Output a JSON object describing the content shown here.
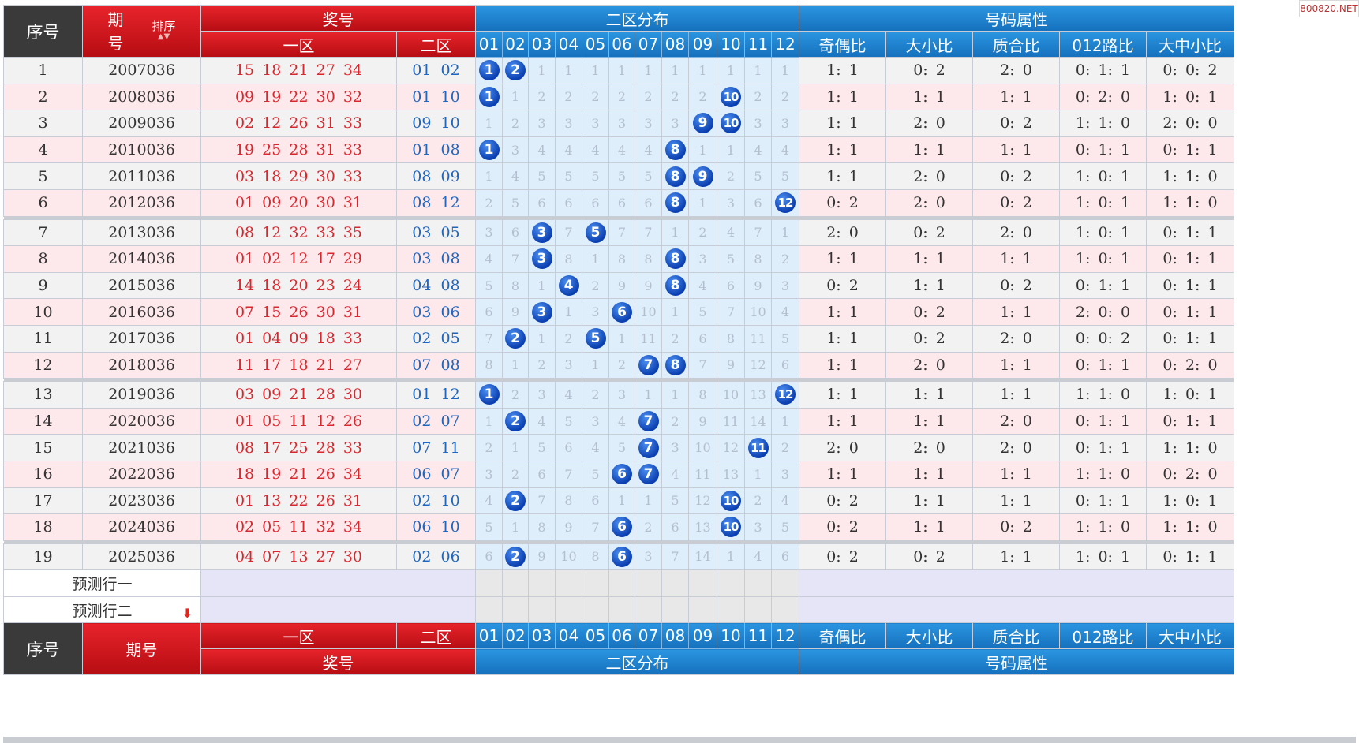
{
  "header": {
    "seq": "序号",
    "issue_top": "期",
    "issue_bottom": "号",
    "sort_label": "排序",
    "prize": "奖号",
    "zone1": "一区",
    "zone2": "二区",
    "zone2_dist": "二区分布",
    "attr_group": "号码属性",
    "attrs": [
      "奇偶比",
      "大小比",
      "质合比",
      "012路比",
      "大中小比"
    ],
    "dist_numbers": [
      "01",
      "02",
      "03",
      "04",
      "05",
      "06",
      "07",
      "08",
      "09",
      "10",
      "11",
      "12"
    ]
  },
  "footer": {
    "seq": "序号",
    "issue": "期号"
  },
  "watermark": "800820.NET",
  "colors": {
    "red_header": "#d21a21",
    "blue_header": "#1f84d0",
    "dark_header": "#3a3a3a",
    "ball": "#1548c4",
    "zone1_text": "#d9272e",
    "zone2_text": "#1d66c2"
  },
  "rows": [
    {
      "seq": "1",
      "issue": "2007036",
      "z1": "15 18 21 27 34",
      "z2": "01 02",
      "dist": [
        {
          "hit": "1"
        },
        {
          "hit": "2"
        },
        "1",
        "1",
        "1",
        "1",
        "1",
        "1",
        "1",
        "1",
        "1",
        "1"
      ],
      "attrs": [
        "1: 1",
        "0: 2",
        "2: 0",
        "0: 1: 1",
        "0: 0: 2"
      ]
    },
    {
      "seq": "2",
      "issue": "2008036",
      "z1": "09 19 22 30 32",
      "z2": "01 10",
      "dist": [
        {
          "hit": "1"
        },
        "1",
        "2",
        "2",
        "2",
        "2",
        "2",
        "2",
        "2",
        {
          "hit": "10"
        },
        "2",
        "2"
      ],
      "attrs": [
        "1: 1",
        "1: 1",
        "1: 1",
        "0: 2: 0",
        "1: 0: 1"
      ]
    },
    {
      "seq": "3",
      "issue": "2009036",
      "z1": "02 12 26 31 33",
      "z2": "09 10",
      "dist": [
        "1",
        "2",
        "3",
        "3",
        "3",
        "3",
        "3",
        "3",
        {
          "hit": "9"
        },
        {
          "hit": "10"
        },
        "3",
        "3"
      ],
      "attrs": [
        "1: 1",
        "2: 0",
        "0: 2",
        "1: 1: 0",
        "2: 0: 0"
      ]
    },
    {
      "seq": "4",
      "issue": "2010036",
      "z1": "19 25 28 31 33",
      "z2": "01 08",
      "dist": [
        {
          "hit": "1"
        },
        "3",
        "4",
        "4",
        "4",
        "4",
        "4",
        {
          "hit": "8"
        },
        "1",
        "1",
        "4",
        "4"
      ],
      "attrs": [
        "1: 1",
        "1: 1",
        "1: 1",
        "0: 1: 1",
        "0: 1: 1"
      ]
    },
    {
      "seq": "5",
      "issue": "2011036",
      "z1": "03 18 29 30 33",
      "z2": "08 09",
      "dist": [
        "1",
        "4",
        "5",
        "5",
        "5",
        "5",
        "5",
        {
          "hit": "8"
        },
        {
          "hit": "9"
        },
        "2",
        "5",
        "5"
      ],
      "attrs": [
        "1: 1",
        "2: 0",
        "0: 2",
        "1: 0: 1",
        "1: 1: 0"
      ]
    },
    {
      "seq": "6",
      "issue": "2012036",
      "z1": "01 09 20 30 31",
      "z2": "08 12",
      "dist": [
        "2",
        "5",
        "6",
        "6",
        "6",
        "6",
        "6",
        {
          "hit": "8"
        },
        "1",
        "3",
        "6",
        {
          "hit": "12"
        }
      ],
      "attrs": [
        "0: 2",
        "2: 0",
        "0: 2",
        "1: 0: 1",
        "1: 1: 0"
      ]
    },
    {
      "seq": "7",
      "issue": "2013036",
      "z1": "08 12 32 33 35",
      "z2": "03 05",
      "dist": [
        "3",
        "6",
        {
          "hit": "3"
        },
        "7",
        {
          "hit": "5"
        },
        "7",
        "7",
        "1",
        "2",
        "4",
        "7",
        "1"
      ],
      "attrs": [
        "2: 0",
        "0: 2",
        "2: 0",
        "1: 0: 1",
        "0: 1: 1"
      ]
    },
    {
      "seq": "8",
      "issue": "2014036",
      "z1": "01 02 12 17 29",
      "z2": "03 08",
      "dist": [
        "4",
        "7",
        {
          "hit": "3"
        },
        "8",
        "1",
        "8",
        "8",
        {
          "hit": "8"
        },
        "3",
        "5",
        "8",
        "2"
      ],
      "attrs": [
        "1: 1",
        "1: 1",
        "1: 1",
        "1: 0: 1",
        "0: 1: 1"
      ]
    },
    {
      "seq": "9",
      "issue": "2015036",
      "z1": "14 18 20 23 24",
      "z2": "04 08",
      "dist": [
        "5",
        "8",
        "1",
        {
          "hit": "4"
        },
        "2",
        "9",
        "9",
        {
          "hit": "8"
        },
        "4",
        "6",
        "9",
        "3"
      ],
      "attrs": [
        "0: 2",
        "1: 1",
        "0: 2",
        "0: 1: 1",
        "0: 1: 1"
      ]
    },
    {
      "seq": "10",
      "issue": "2016036",
      "z1": "07 15 26 30 31",
      "z2": "03 06",
      "dist": [
        "6",
        "9",
        {
          "hit": "3"
        },
        "1",
        "3",
        {
          "hit": "6"
        },
        "10",
        "1",
        "5",
        "7",
        "10",
        "4"
      ],
      "attrs": [
        "1: 1",
        "0: 2",
        "1: 1",
        "2: 0: 0",
        "0: 1: 1"
      ]
    },
    {
      "seq": "11",
      "issue": "2017036",
      "z1": "01 04 09 18 33",
      "z2": "02 05",
      "dist": [
        "7",
        {
          "hit": "2"
        },
        "1",
        "2",
        {
          "hit": "5"
        },
        "1",
        "11",
        "2",
        "6",
        "8",
        "11",
        "5"
      ],
      "attrs": [
        "1: 1",
        "0: 2",
        "2: 0",
        "0: 0: 2",
        "0: 1: 1"
      ]
    },
    {
      "seq": "12",
      "issue": "2018036",
      "z1": "11 17 18 21 27",
      "z2": "07 08",
      "dist": [
        "8",
        "1",
        "2",
        "3",
        "1",
        "2",
        {
          "hit": "7"
        },
        {
          "hit": "8"
        },
        "7",
        "9",
        "12",
        "6"
      ],
      "attrs": [
        "1: 1",
        "2: 0",
        "1: 1",
        "0: 1: 1",
        "0: 2: 0"
      ]
    },
    {
      "seq": "13",
      "issue": "2019036",
      "z1": "03 09 21 28 30",
      "z2": "01 12",
      "dist": [
        {
          "hit": "1"
        },
        "2",
        "3",
        "4",
        "2",
        "3",
        "1",
        "1",
        "8",
        "10",
        "13",
        {
          "hit": "12"
        }
      ],
      "attrs": [
        "1: 1",
        "1: 1",
        "1: 1",
        "1: 1: 0",
        "1: 0: 1"
      ]
    },
    {
      "seq": "14",
      "issue": "2020036",
      "z1": "01 05 11 12 26",
      "z2": "02 07",
      "dist": [
        "1",
        {
          "hit": "2"
        },
        "4",
        "5",
        "3",
        "4",
        {
          "hit": "7"
        },
        "2",
        "9",
        "11",
        "14",
        "1"
      ],
      "attrs": [
        "1: 1",
        "1: 1",
        "2: 0",
        "0: 1: 1",
        "0: 1: 1"
      ]
    },
    {
      "seq": "15",
      "issue": "2021036",
      "z1": "08 17 25 28 33",
      "z2": "07 11",
      "dist": [
        "2",
        "1",
        "5",
        "6",
        "4",
        "5",
        {
          "hit": "7"
        },
        "3",
        "10",
        "12",
        {
          "hit": "11"
        },
        "2"
      ],
      "attrs": [
        "2: 0",
        "2: 0",
        "2: 0",
        "0: 1: 1",
        "1: 1: 0"
      ]
    },
    {
      "seq": "16",
      "issue": "2022036",
      "z1": "18 19 21 26 34",
      "z2": "06 07",
      "dist": [
        "3",
        "2",
        "6",
        "7",
        "5",
        {
          "hit": "6"
        },
        {
          "hit": "7"
        },
        "4",
        "11",
        "13",
        "1",
        "3"
      ],
      "attrs": [
        "1: 1",
        "1: 1",
        "1: 1",
        "1: 1: 0",
        "0: 2: 0"
      ]
    },
    {
      "seq": "17",
      "issue": "2023036",
      "z1": "01 13 22 26 31",
      "z2": "02 10",
      "dist": [
        "4",
        {
          "hit": "2"
        },
        "7",
        "8",
        "6",
        "1",
        "1",
        "5",
        "12",
        {
          "hit": "10"
        },
        "2",
        "4"
      ],
      "attrs": [
        "0: 2",
        "1: 1",
        "1: 1",
        "0: 1: 1",
        "1: 0: 1"
      ]
    },
    {
      "seq": "18",
      "issue": "2024036",
      "z1": "02 05 11 32 34",
      "z2": "06 10",
      "dist": [
        "5",
        "1",
        "8",
        "9",
        "7",
        {
          "hit": "6"
        },
        "2",
        "6",
        "13",
        {
          "hit": "10"
        },
        "3",
        "5"
      ],
      "attrs": [
        "0: 2",
        "1: 1",
        "0: 2",
        "1: 1: 0",
        "1: 1: 0"
      ]
    },
    {
      "seq": "19",
      "issue": "2025036",
      "z1": "04 07 13 27 30",
      "z2": "02 06",
      "dist": [
        "6",
        {
          "hit": "2"
        },
        "9",
        "10",
        "8",
        {
          "hit": "6"
        },
        "3",
        "7",
        "14",
        "1",
        "4",
        "6"
      ],
      "attrs": [
        "0: 2",
        "0: 2",
        "1: 1",
        "1: 0: 1",
        "0: 1: 1"
      ]
    }
  ],
  "predict": {
    "row1": "预测行一",
    "row2": "预测行二",
    "arrow_icon": "red-down-arrow-icon"
  }
}
